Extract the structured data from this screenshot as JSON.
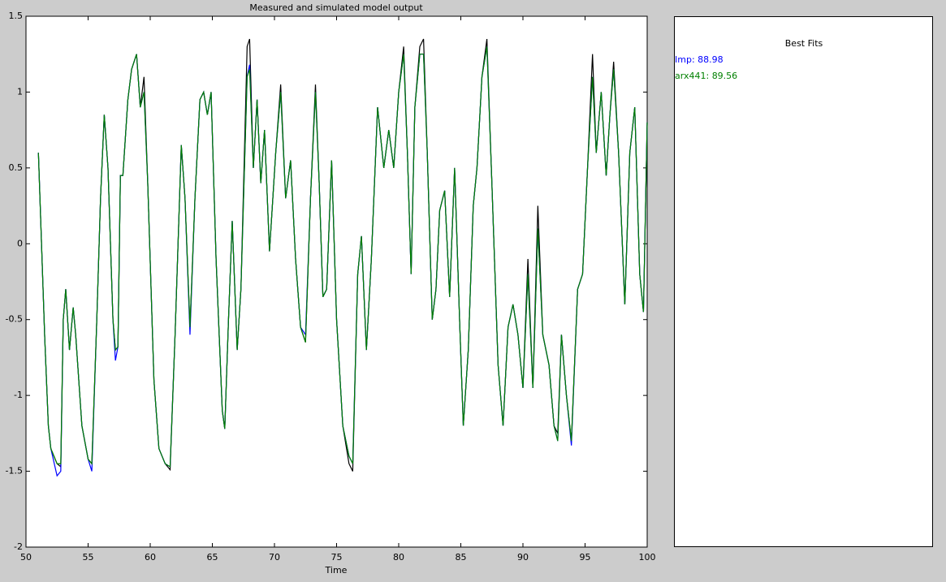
{
  "chart_data": {
    "type": "line",
    "title": "Measured and simulated model output",
    "xlabel": "Time",
    "xlim": [
      50,
      100
    ],
    "ylim": [
      -2,
      1.5
    ],
    "xticks": [
      50,
      55,
      60,
      65,
      70,
      75,
      80,
      85,
      90,
      95,
      100
    ],
    "yticks": [
      -2,
      -1.5,
      -1,
      -0.5,
      0,
      0.5,
      1,
      1.5
    ],
    "legend_title": "Best Fits",
    "x": [
      51.0,
      51.5,
      51.8,
      52.0,
      52.5,
      52.8,
      53.0,
      53.2,
      53.5,
      53.8,
      54.0,
      54.5,
      55.0,
      55.3,
      55.7,
      56.0,
      56.3,
      56.6,
      57.0,
      57.2,
      57.4,
      57.6,
      57.8,
      58.2,
      58.5,
      58.9,
      59.2,
      59.5,
      59.8,
      60.3,
      60.7,
      61.2,
      61.6,
      62.0,
      62.5,
      62.8,
      63.2,
      63.6,
      64.0,
      64.3,
      64.6,
      64.9,
      65.3,
      65.8,
      66.0,
      66.3,
      66.6,
      67.0,
      67.3,
      67.8,
      68.0,
      68.3,
      68.6,
      68.9,
      69.2,
      69.6,
      70.1,
      70.5,
      70.9,
      71.3,
      71.7,
      72.1,
      72.5,
      72.9,
      73.3,
      73.6,
      73.9,
      74.2,
      74.6,
      75.0,
      75.5,
      76.0,
      76.3,
      76.7,
      77.0,
      77.4,
      77.8,
      78.3,
      78.8,
      79.2,
      79.6,
      80.0,
      80.4,
      80.7,
      81.0,
      81.3,
      81.7,
      82.0,
      82.3,
      82.7,
      83.0,
      83.3,
      83.7,
      84.1,
      84.5,
      84.9,
      85.2,
      85.6,
      86.0,
      86.3,
      86.7,
      87.1,
      87.5,
      88.0,
      88.4,
      88.8,
      89.2,
      89.6,
      90.0,
      90.4,
      90.8,
      91.2,
      91.6,
      92.1,
      92.5,
      92.8,
      93.1,
      93.5,
      93.9,
      94.4,
      94.8,
      95.2,
      95.6,
      95.9,
      96.3,
      96.7,
      97.0,
      97.3,
      97.7,
      98.2,
      98.6,
      99.0,
      99.4,
      99.7,
      100
    ],
    "series": [
      {
        "color": "#000000",
        "values": [
          0.6,
          -0.6,
          -1.2,
          -1.35,
          -1.45,
          -1.47,
          -0.5,
          -0.3,
          -0.7,
          -0.42,
          -0.6,
          -1.2,
          -1.42,
          -1.45,
          -0.5,
          0.3,
          0.85,
          0.5,
          -0.5,
          -0.7,
          -0.68,
          0.45,
          0.45,
          0.95,
          1.15,
          1.25,
          0.9,
          1.1,
          0.4,
          -0.9,
          -1.35,
          -1.45,
          -1.49,
          -0.6,
          0.65,
          0.3,
          -0.55,
          0.3,
          0.95,
          1.0,
          0.85,
          1.0,
          -0.1,
          -1.1,
          -1.22,
          -0.5,
          0.15,
          -0.7,
          -0.3,
          1.3,
          1.35,
          0.5,
          0.95,
          0.4,
          0.75,
          -0.05,
          0.6,
          1.05,
          0.3,
          0.55,
          -0.1,
          -0.55,
          -0.65,
          0.3,
          1.05,
          0.4,
          -0.35,
          -0.3,
          0.55,
          -0.5,
          -1.2,
          -1.45,
          -1.5,
          -0.2,
          0.05,
          -0.7,
          -0.1,
          0.9,
          0.5,
          0.75,
          0.5,
          1.0,
          1.3,
          0.6,
          -0.2,
          0.9,
          1.3,
          1.35,
          0.6,
          -0.5,
          -0.3,
          0.22,
          0.35,
          -0.35,
          0.5,
          -0.5,
          -1.2,
          -0.7,
          0.25,
          0.5,
          1.1,
          1.35,
          0.4,
          -0.8,
          -1.2,
          -0.55,
          -0.4,
          -0.6,
          -0.95,
          -0.1,
          -0.95,
          0.25,
          -0.6,
          -0.8,
          -1.2,
          -1.25,
          -0.6,
          -1.0,
          -1.3,
          -0.3,
          -0.2,
          0.5,
          1.25,
          0.6,
          1.0,
          0.45,
          0.85,
          1.2,
          0.6,
          -0.4,
          0.6,
          0.9,
          -0.2,
          -0.45,
          0.8
        ]
      },
      {
        "name": "Imp",
        "fit": 88.98,
        "color": "#0000ff",
        "values": [
          0.6,
          -0.6,
          -1.2,
          -1.35,
          -1.53,
          -1.5,
          -0.5,
          -0.3,
          -0.7,
          -0.42,
          -0.6,
          -1.2,
          -1.42,
          -1.5,
          -0.5,
          0.3,
          0.85,
          0.5,
          -0.5,
          -0.77,
          -0.68,
          0.45,
          0.45,
          0.95,
          1.15,
          1.25,
          0.9,
          1.0,
          0.4,
          -0.9,
          -1.35,
          -1.45,
          -1.47,
          -0.6,
          0.65,
          0.3,
          -0.6,
          0.3,
          0.95,
          1.0,
          0.85,
          1.0,
          -0.1,
          -1.1,
          -1.22,
          -0.5,
          0.15,
          -0.7,
          -0.3,
          1.1,
          1.18,
          0.5,
          0.95,
          0.4,
          0.75,
          -0.05,
          0.6,
          1.0,
          0.3,
          0.55,
          -0.1,
          -0.55,
          -0.6,
          0.3,
          1.0,
          0.4,
          -0.35,
          -0.3,
          0.55,
          -0.5,
          -1.2,
          -1.4,
          -1.45,
          -0.2,
          0.05,
          -0.7,
          -0.1,
          0.9,
          0.5,
          0.75,
          0.5,
          1.0,
          1.25,
          0.6,
          -0.2,
          0.9,
          1.25,
          1.25,
          0.6,
          -0.5,
          -0.3,
          0.22,
          0.35,
          -0.35,
          0.5,
          -0.5,
          -1.2,
          -0.7,
          0.25,
          0.5,
          1.1,
          1.3,
          0.4,
          -0.8,
          -1.2,
          -0.55,
          -0.4,
          -0.6,
          -0.95,
          -0.2,
          -0.95,
          0.1,
          -0.6,
          -0.8,
          -1.2,
          -1.3,
          -0.6,
          -1.0,
          -1.33,
          -0.3,
          -0.2,
          0.5,
          1.1,
          0.6,
          1.0,
          0.45,
          0.85,
          1.15,
          0.6,
          -0.4,
          0.6,
          0.9,
          -0.2,
          -0.45,
          0.8
        ]
      },
      {
        "name": "arx441",
        "fit": 89.56,
        "color": "#008000",
        "values": [
          0.6,
          -0.6,
          -1.2,
          -1.35,
          -1.45,
          -1.45,
          -0.5,
          -0.3,
          -0.7,
          -0.42,
          -0.6,
          -1.2,
          -1.42,
          -1.45,
          -0.5,
          0.3,
          0.85,
          0.5,
          -0.5,
          -0.7,
          -0.68,
          0.45,
          0.45,
          0.95,
          1.15,
          1.25,
          0.9,
          1.0,
          0.4,
          -0.9,
          -1.35,
          -1.45,
          -1.47,
          -0.6,
          0.65,
          0.3,
          -0.55,
          0.3,
          0.95,
          1.0,
          0.85,
          1.0,
          -0.1,
          -1.1,
          -1.22,
          -0.5,
          0.15,
          -0.7,
          -0.3,
          1.1,
          1.15,
          0.5,
          0.95,
          0.4,
          0.75,
          -0.05,
          0.6,
          1.0,
          0.3,
          0.55,
          -0.1,
          -0.55,
          -0.65,
          0.3,
          1.0,
          0.4,
          -0.35,
          -0.3,
          0.55,
          -0.5,
          -1.2,
          -1.4,
          -1.45,
          -0.2,
          0.05,
          -0.7,
          -0.1,
          0.9,
          0.5,
          0.75,
          0.5,
          1.0,
          1.25,
          0.6,
          -0.2,
          0.9,
          1.25,
          1.25,
          0.6,
          -0.5,
          -0.3,
          0.22,
          0.35,
          -0.35,
          0.5,
          -0.5,
          -1.2,
          -0.7,
          0.25,
          0.5,
          1.1,
          1.3,
          0.4,
          -0.8,
          -1.2,
          -0.55,
          -0.4,
          -0.6,
          -0.95,
          -0.2,
          -0.95,
          0.1,
          -0.6,
          -0.8,
          -1.2,
          -1.3,
          -0.6,
          -1.0,
          -1.3,
          -0.3,
          -0.2,
          0.5,
          1.1,
          0.6,
          1.0,
          0.45,
          0.85,
          1.15,
          0.6,
          -0.4,
          0.6,
          0.9,
          -0.2,
          -0.45,
          0.8
        ]
      }
    ]
  }
}
